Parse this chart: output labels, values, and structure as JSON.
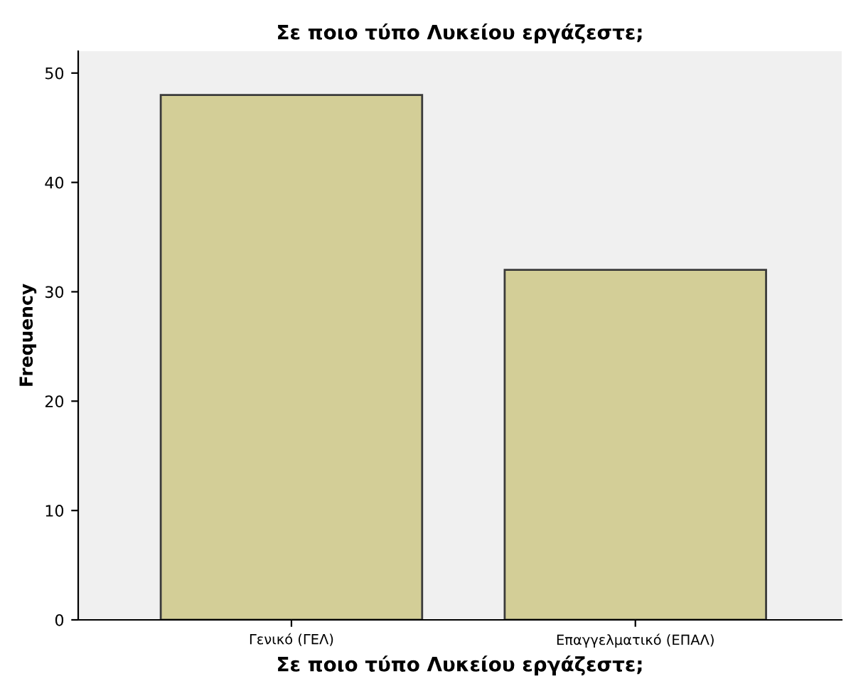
{
  "chart_data": {
    "type": "bar",
    "title": "Σε ποιο τύπο Λυκείου εργάζεστε;",
    "xlabel": "Σε ποιο τύπο Λυκείου εργάζεστε;",
    "ylabel": "Frequency",
    "categories": [
      "Γενικό (ΓΕΛ)",
      "Επαγγελματικό (ΕΠΑΛ)"
    ],
    "values": [
      48,
      32
    ],
    "color": "#d3ce97",
    "ylim": [
      0,
      52
    ],
    "yticks": [
      0,
      10,
      20,
      30,
      40,
      50
    ],
    "grid": false
  }
}
